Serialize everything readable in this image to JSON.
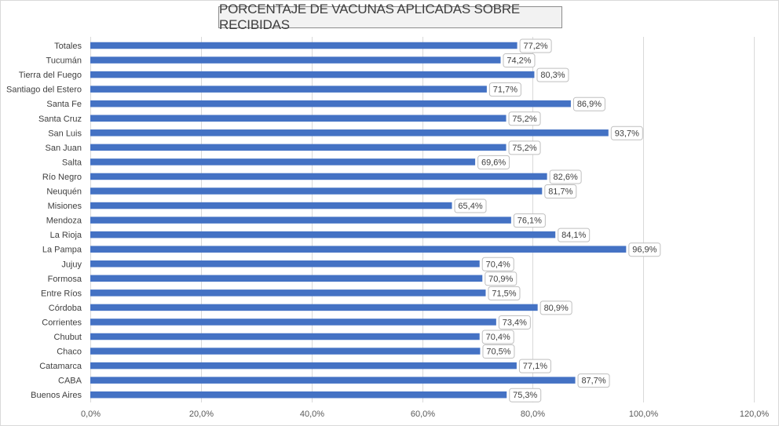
{
  "chart_data": {
    "type": "bar",
    "orientation": "horizontal",
    "title": "PORCENTAJE DE VACUNAS APLICADAS SOBRE RECIBIDAS",
    "categories": [
      "Totales",
      "Tucumán",
      "Tierra del Fuego",
      "Santiago del Estero",
      "Santa Fe",
      "Santa Cruz",
      "San Luis",
      "San Juan",
      "Salta",
      "Río Negro",
      "Neuquén",
      "Misiones",
      "Mendoza",
      "La Rioja",
      "La Pampa",
      "Jujuy",
      "Formosa",
      "Entre Ríos",
      "Córdoba",
      "Corrientes",
      "Chubut",
      "Chaco",
      "Catamarca",
      "CABA",
      "Buenos Aires"
    ],
    "values": [
      77.2,
      74.2,
      80.3,
      71.7,
      86.9,
      75.2,
      93.7,
      75.2,
      69.6,
      82.6,
      81.7,
      65.4,
      76.1,
      84.1,
      96.9,
      70.4,
      70.9,
      71.5,
      80.9,
      73.4,
      70.4,
      70.5,
      77.1,
      87.7,
      75.3
    ],
    "data_labels": [
      "77,2%",
      "74,2%",
      "80,3%",
      "71,7%",
      "86,9%",
      "75,2%",
      "93,7%",
      "75,2%",
      "69,6%",
      "82,6%",
      "81,7%",
      "65,4%",
      "76,1%",
      "84,1%",
      "96,9%",
      "70,4%",
      "70,9%",
      "71,5%",
      "80,9%",
      "73,4%",
      "70,4%",
      "70,5%",
      "77,1%",
      "87,7%",
      "75,3%"
    ],
    "x_ticks": [
      0,
      20,
      40,
      60,
      80,
      100,
      120
    ],
    "x_tick_labels": [
      "0,0%",
      "20,0%",
      "40,0%",
      "60,0%",
      "80,0%",
      "100,0%",
      "120,0%"
    ],
    "xlim": [
      0,
      120
    ],
    "grid": "vertical",
    "legend": "none",
    "bar_color": "#4472c4",
    "grid_color": "#d9d9d9"
  }
}
